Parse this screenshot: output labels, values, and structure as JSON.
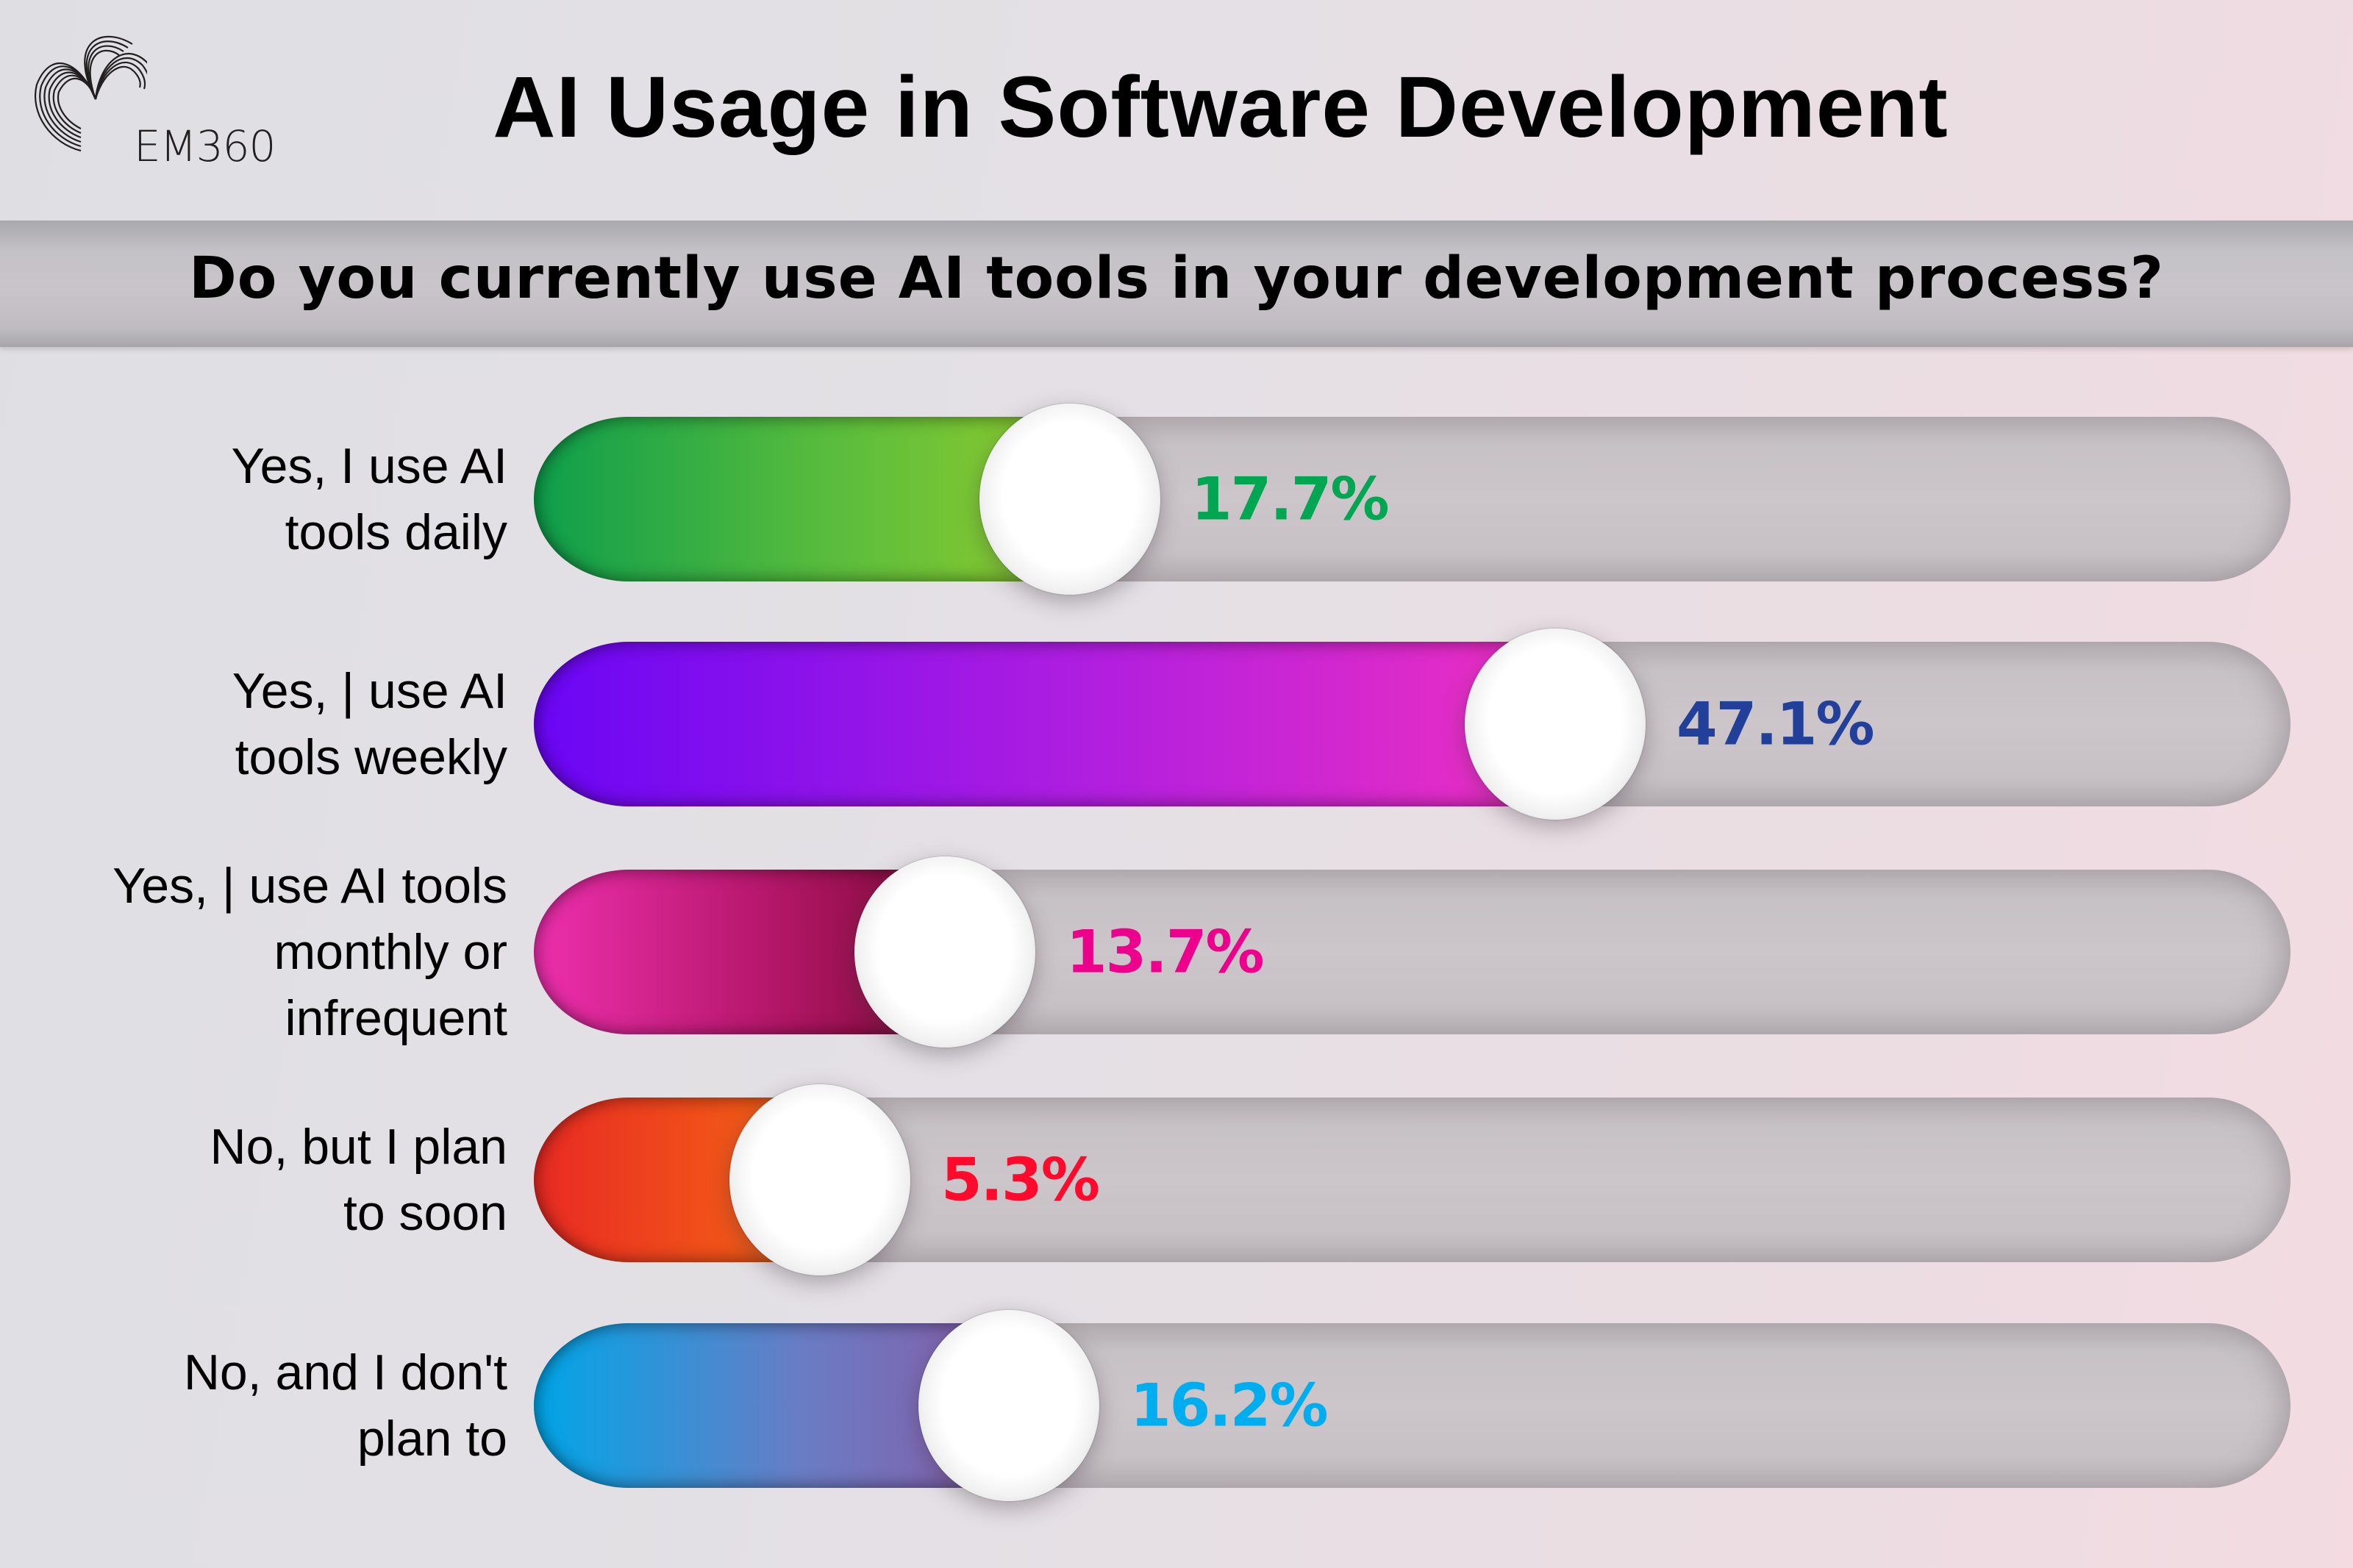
{
  "brand": {
    "logo_text": "EM360",
    "logo_icon": "concentric-arc-wave-icon"
  },
  "title": "AI Usage in Software Development",
  "subtitle": "Do you currently use AI tools in your development process?",
  "chart_data": {
    "type": "bar",
    "orientation": "horizontal",
    "title": "AI Usage in Software Development",
    "subtitle": "Do you currently use AI tools in your development process?",
    "categories": [
      "Yes, I use AI tools daily",
      "Yes, I use AI tools weekly",
      "Yes, I use AI tools monthly or infrequent",
      "No, but I plan to soon",
      "No, and I don't plan to"
    ],
    "values": [
      17.7,
      47.1,
      13.7,
      5.3,
      16.2
    ],
    "unit": "%",
    "xlim": [
      0,
      100
    ],
    "grid": false,
    "legend": "none",
    "xlabel": "",
    "ylabel": ""
  },
  "rows": [
    {
      "label_lines": [
        "Yes, I use AI",
        "tools daily"
      ],
      "value": 17.7,
      "value_text": "17.7%",
      "value_color": "#00a651",
      "gradient": [
        "#0e9e4c",
        "#5bbd3c",
        "#92cc2e"
      ]
    },
    {
      "label_lines": [
        "Yes, | use AI",
        "tools weekly"
      ],
      "value": 47.1,
      "value_text": "47.1%",
      "value_color": "#22409a",
      "gradient": [
        "#6a06f5",
        "#b21fdf",
        "#f130c0"
      ]
    },
    {
      "label_lines": [
        "Yes, | use AI tools",
        "monthly or",
        "infrequent"
      ],
      "value": 13.7,
      "value_text": "13.7%",
      "value_color": "#ec008c",
      "gradient": [
        "#ee2fae",
        "#b5176a",
        "#7a0a33"
      ]
    },
    {
      "label_lines": [
        "No, but I plan",
        "to soon"
      ],
      "value": 5.3,
      "value_text": "5.3%",
      "value_color": "#ff0a2c",
      "gradient": [
        "#e82a24",
        "#f04e1a",
        "#f06914"
      ]
    },
    {
      "label_lines": [
        "No, and I don't",
        "plan to"
      ],
      "value": 16.2,
      "value_text": "16.2%",
      "value_color": "#00aeef",
      "gradient": [
        "#00a6e8",
        "#6a7cc4",
        "#8a5aa6"
      ]
    }
  ]
}
